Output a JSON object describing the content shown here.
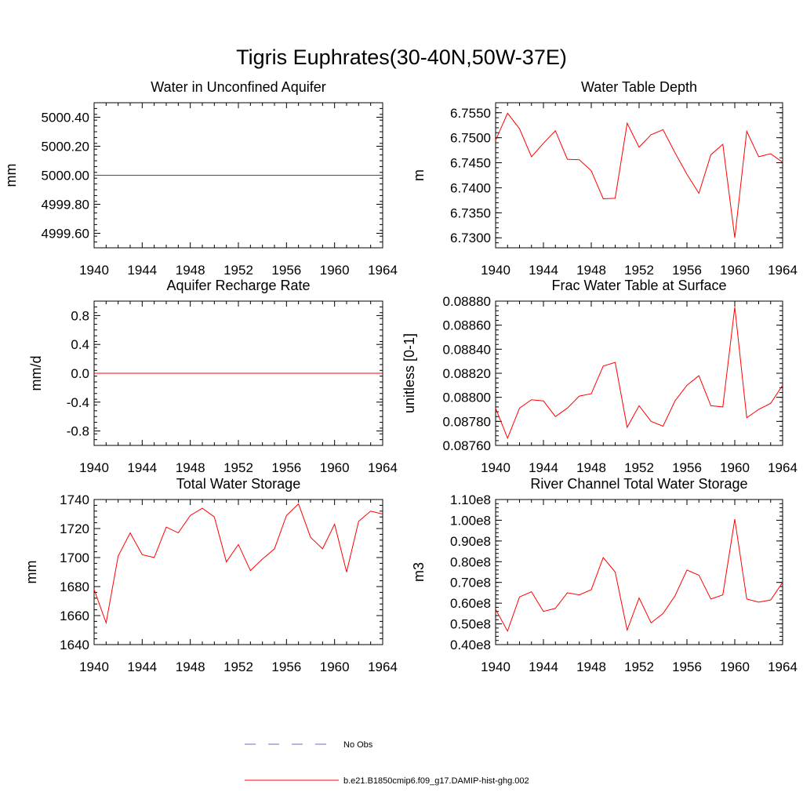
{
  "figure": {
    "title": "Tigris Euphrates(30-40N,50W-37E)"
  },
  "colors": {
    "model_line": "#ff0000",
    "obs_line": "#6b6bbf",
    "frame": "#000000"
  },
  "legend": {
    "items": [
      {
        "label": "No Obs",
        "style": "dashed",
        "color": "#6b6bbf"
      },
      {
        "label": "b.e21.B1850cmip6.f09_g17.DAMIP-hist-ghg.002",
        "style": "solid",
        "color": "#ff0000"
      }
    ]
  },
  "chart_data": [
    {
      "type": "line",
      "title": "Water in Unconfined Aquifer",
      "ylabel": "mm",
      "xlim": [
        1940,
        1964
      ],
      "ylim": [
        4999.5,
        5000.5
      ],
      "xticks": [
        1940,
        1944,
        1948,
        1952,
        1956,
        1960,
        1964
      ],
      "xticklabels": [
        "1940",
        "1944",
        "1948",
        "1952",
        "1956",
        "1960",
        "1964"
      ],
      "yticks": [
        4999.6,
        4999.8,
        5000.0,
        5000.2,
        5000.4
      ],
      "yticklabels": [
        "4999.60",
        "4999.80",
        "5000.00",
        "5000.20",
        "5000.40"
      ],
      "yminor": 0.04,
      "x": [
        1940,
        1941,
        1942,
        1943,
        1944,
        1945,
        1946,
        1947,
        1948,
        1949,
        1950,
        1951,
        1952,
        1953,
        1954,
        1955,
        1956,
        1957,
        1958,
        1959,
        1960,
        1961,
        1962,
        1963,
        1964
      ],
      "series": [
        {
          "values": [
            5000,
            5000,
            5000,
            5000,
            5000,
            5000,
            5000,
            5000,
            5000,
            5000,
            5000,
            5000,
            5000,
            5000,
            5000,
            5000,
            5000,
            5000,
            5000,
            5000,
            5000,
            5000,
            5000,
            5000,
            5000
          ]
        }
      ]
    },
    {
      "type": "line",
      "title": "Water Table Depth",
      "ylabel": "m",
      "xlim": [
        1940,
        1964
      ],
      "ylim": [
        6.728,
        6.757
      ],
      "xticks": [
        1940,
        1944,
        1948,
        1952,
        1956,
        1960,
        1964
      ],
      "xticklabels": [
        "1940",
        "1944",
        "1948",
        "1952",
        "1956",
        "1960",
        "1964"
      ],
      "yticks": [
        6.73,
        6.735,
        6.74,
        6.745,
        6.75,
        6.755
      ],
      "yticklabels": [
        "6.7300",
        "6.7350",
        "6.7400",
        "6.7450",
        "6.7500",
        "6.7550"
      ],
      "yminor": 0.001,
      "x": [
        1940,
        1941,
        1942,
        1943,
        1944,
        1945,
        1946,
        1947,
        1948,
        1949,
        1950,
        1951,
        1952,
        1953,
        1954,
        1955,
        1956,
        1957,
        1958,
        1959,
        1960,
        1961,
        1962,
        1963,
        1964
      ],
      "series": [
        {
          "values": [
            6.7495,
            6.7549,
            6.7518,
            6.7462,
            6.7489,
            6.7514,
            6.7457,
            6.7456,
            6.7434,
            6.7378,
            6.7379,
            6.7529,
            6.7481,
            6.7506,
            6.7516,
            6.747,
            6.7427,
            6.7389,
            6.7466,
            6.7487,
            6.73,
            6.7513,
            6.7462,
            6.7468,
            6.7451
          ]
        }
      ]
    },
    {
      "type": "line",
      "title": "Aquifer Recharge Rate",
      "ylabel": "mm/d",
      "xlim": [
        1940,
        1964
      ],
      "ylim": [
        -1.0,
        1.0
      ],
      "xticks": [
        1940,
        1944,
        1948,
        1952,
        1956,
        1960,
        1964
      ],
      "xticklabels": [
        "1940",
        "1944",
        "1948",
        "1952",
        "1956",
        "1960",
        "1964"
      ],
      "yticks": [
        -0.8,
        -0.4,
        0.0,
        0.4,
        0.8
      ],
      "yticklabels": [
        "-0.8",
        "-0.4",
        "0.0",
        "0.4",
        "0.8"
      ],
      "yminor": 0.08,
      "x": [
        1940,
        1941,
        1942,
        1943,
        1944,
        1945,
        1946,
        1947,
        1948,
        1949,
        1950,
        1951,
        1952,
        1953,
        1954,
        1955,
        1956,
        1957,
        1958,
        1959,
        1960,
        1961,
        1962,
        1963,
        1964
      ],
      "series": [
        {
          "values": [
            0,
            0,
            0,
            0,
            0,
            0,
            0,
            0,
            0,
            0,
            0,
            0,
            0,
            0,
            0,
            0,
            0,
            0,
            0,
            0,
            0,
            0,
            0,
            0,
            0
          ]
        }
      ]
    },
    {
      "type": "line",
      "title": "Frac Water Table at Surface",
      "ylabel": "unitless [0-1]",
      "xlim": [
        1940,
        1964
      ],
      "ylim": [
        0.0876,
        0.0888
      ],
      "xticks": [
        1940,
        1944,
        1948,
        1952,
        1956,
        1960,
        1964
      ],
      "xticklabels": [
        "1940",
        "1944",
        "1948",
        "1952",
        "1956",
        "1960",
        "1964"
      ],
      "yticks": [
        0.0876,
        0.0878,
        0.088,
        0.0882,
        0.0884,
        0.0886,
        0.0888
      ],
      "yticklabels": [
        "0.08760",
        "0.08780",
        "0.08800",
        "0.08820",
        "0.08840",
        "0.08860",
        "0.08880"
      ],
      "yminor": 4e-05,
      "x": [
        1940,
        1941,
        1942,
        1943,
        1944,
        1945,
        1946,
        1947,
        1948,
        1949,
        1950,
        1951,
        1952,
        1953,
        1954,
        1955,
        1956,
        1957,
        1958,
        1959,
        1960,
        1961,
        1962,
        1963,
        1964
      ],
      "series": [
        {
          "values": [
            0.08791,
            0.08766,
            0.08791,
            0.08798,
            0.08797,
            0.08784,
            0.08791,
            0.08801,
            0.08803,
            0.08826,
            0.08829,
            0.08775,
            0.08793,
            0.0878,
            0.08776,
            0.08797,
            0.0881,
            0.08818,
            0.08793,
            0.08792,
            0.08875,
            0.08783,
            0.0879,
            0.08795,
            0.0881
          ]
        }
      ]
    },
    {
      "type": "line",
      "title": "Total Water Storage",
      "ylabel": "mm",
      "xlim": [
        1940,
        1964
      ],
      "ylim": [
        1640,
        1740
      ],
      "xticks": [
        1940,
        1944,
        1948,
        1952,
        1956,
        1960,
        1964
      ],
      "xticklabels": [
        "1940",
        "1944",
        "1948",
        "1952",
        "1956",
        "1960",
        "1964"
      ],
      "yticks": [
        1640,
        1660,
        1680,
        1700,
        1720,
        1740
      ],
      "yticklabels": [
        "1640",
        "1660",
        "1680",
        "1700",
        "1720",
        "1740"
      ],
      "yminor": 4,
      "x": [
        1940,
        1941,
        1942,
        1943,
        1944,
        1945,
        1946,
        1947,
        1948,
        1949,
        1950,
        1951,
        1952,
        1953,
        1954,
        1955,
        1956,
        1957,
        1958,
        1959,
        1960,
        1961,
        1962,
        1963,
        1964
      ],
      "series": [
        {
          "values": [
            1678,
            1655,
            1701,
            1717,
            1702,
            1700,
            1721,
            1717,
            1729,
            1734,
            1728,
            1697,
            1709,
            1691,
            1699,
            1706,
            1729,
            1737,
            1714,
            1706,
            1723,
            1690,
            1725,
            1732,
            1730
          ]
        }
      ]
    },
    {
      "type": "line",
      "title": "River Channel Total Water Storage",
      "ylabel": "m3",
      "xlim": [
        1940,
        1964
      ],
      "ylim": [
        40000000,
        110000000
      ],
      "xticks": [
        1940,
        1944,
        1948,
        1952,
        1956,
        1960,
        1964
      ],
      "xticklabels": [
        "1940",
        "1944",
        "1948",
        "1952",
        "1956",
        "1960",
        "1964"
      ],
      "yticks": [
        40000000,
        50000000,
        60000000,
        70000000,
        80000000,
        90000000,
        100000000,
        110000000
      ],
      "yticklabels": [
        "0.40e8",
        "0.50e8",
        "0.60e8",
        "0.70e8",
        "0.80e8",
        "0.90e8",
        "1.00e8",
        "1.10e8"
      ],
      "yminor": 2000000,
      "x": [
        1940,
        1941,
        1942,
        1943,
        1944,
        1945,
        1946,
        1947,
        1948,
        1949,
        1950,
        1951,
        1952,
        1953,
        1954,
        1955,
        1956,
        1957,
        1958,
        1959,
        1960,
        1961,
        1962,
        1963,
        1964
      ],
      "series": [
        {
          "values": [
            57000000,
            46500000,
            63000000,
            65500000,
            56000000,
            57500000,
            65000000,
            64000000,
            66500000,
            82000000,
            75000000,
            47000000,
            62500000,
            50500000,
            55000000,
            63500000,
            76000000,
            73500000,
            62000000,
            64000000,
            100500000,
            62000000,
            60500000,
            61500000,
            70000000
          ]
        }
      ]
    }
  ]
}
